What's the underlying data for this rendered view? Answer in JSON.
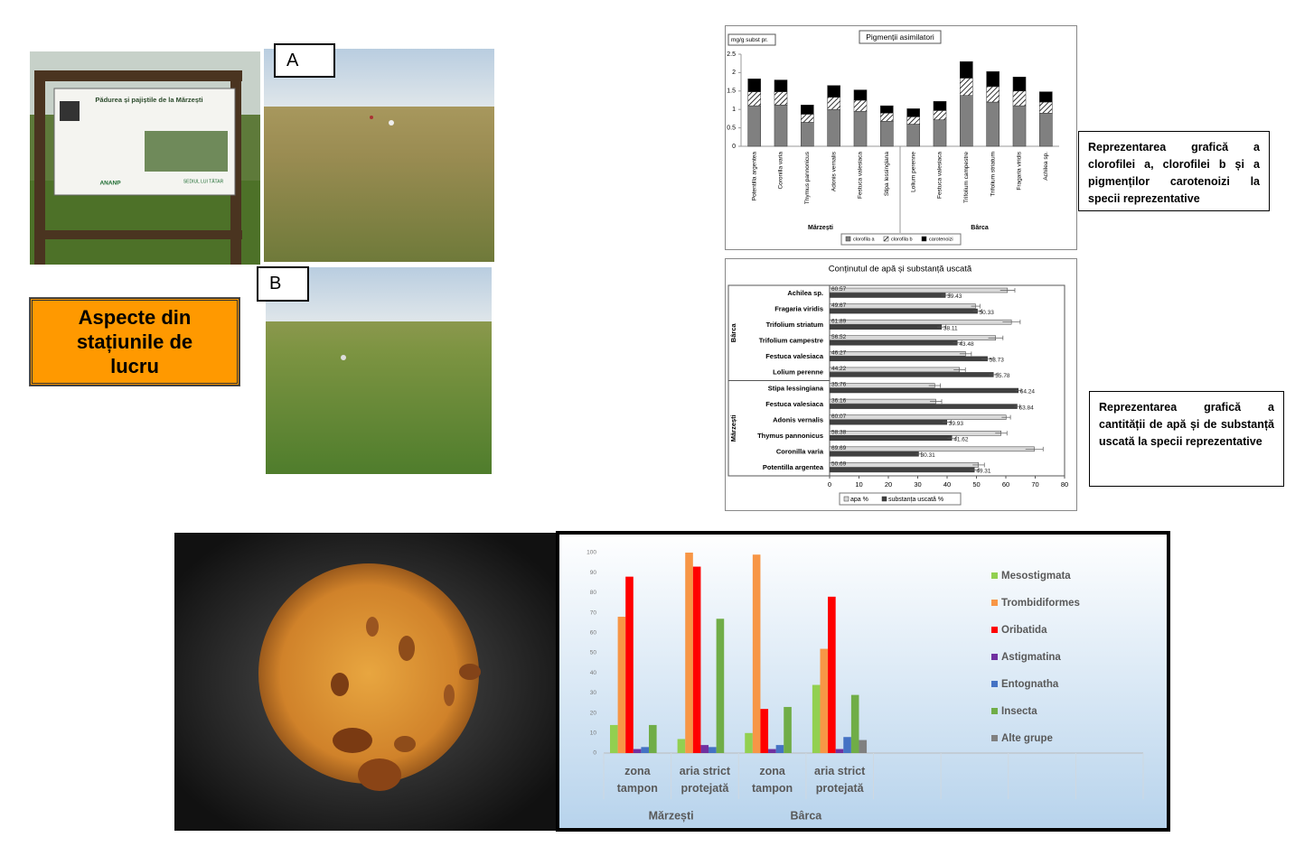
{
  "photos": {
    "sign_title": "Pădurea și pajiștile de la Mărzești",
    "sign_logos": [
      "ANANP",
      "SEDIUL LUI TĂTAR"
    ],
    "label_a": "A",
    "label_b": "B"
  },
  "title_box": "Aspecte din stațiunile de lucru",
  "captions": [
    "Reprezentarea grafică a clorofilei a, clorofilei b și a pigmenților carotenoizi la specii reprezentative",
    "Reprezentarea grafică a cantității de apă și de substanță uscată la specii reprezentative"
  ],
  "chart_data": [
    {
      "type": "bar",
      "stacked": true,
      "title": "Pigmenții asimilatori",
      "y_label": "mg/g subst pr.",
      "groups": [
        {
          "name": "Mărzești",
          "categories": [
            "Potentilla argentea",
            "Coronilla varia",
            "Thymus pannonicus",
            "Adonis vernalis",
            "Festuca valesiaca",
            "Stipa lessingiana"
          ]
        },
        {
          "name": "Bârca",
          "categories": [
            "Lolium perenne",
            "Festuca valesiaca",
            "Trifolium campestre",
            "Trifolium striatum",
            "Fragaria viridis",
            "Achilea sp."
          ]
        }
      ],
      "series": [
        {
          "name": "clorofila a",
          "color": "#808080",
          "values": [
            1.1,
            1.12,
            0.65,
            1.0,
            0.95,
            0.68,
            0.6,
            0.72,
            1.38,
            1.2,
            1.1,
            0.9
          ]
        },
        {
          "name": "clorofila b",
          "color": "#ffffff",
          "pattern": "hatch",
          "values": [
            0.38,
            0.36,
            0.22,
            0.33,
            0.3,
            0.22,
            0.2,
            0.25,
            0.47,
            0.42,
            0.4,
            0.3
          ]
        },
        {
          "name": "carotenoizi",
          "color": "#000000",
          "values": [
            0.35,
            0.32,
            0.25,
            0.32,
            0.28,
            0.2,
            0.22,
            0.25,
            0.45,
            0.41,
            0.38,
            0.28
          ]
        }
      ],
      "ylim": [
        0,
        2.5
      ],
      "yticks": [
        0,
        0.5,
        1,
        1.5,
        2,
        2.5
      ],
      "legend": "bottom"
    },
    {
      "type": "bar",
      "horizontal": true,
      "title": "Conținutul de apă și substanță uscată",
      "groups": [
        {
          "name": "Bârca",
          "categories": [
            "Achilea sp.",
            "Fragaria viridis",
            "Trifolium striatum",
            "Trifolium campestre",
            "Festuca valesiaca",
            "Lolium perenne"
          ]
        },
        {
          "name": "Mărzești",
          "categories": [
            "Stipa lessingiana",
            "Festuca valesiaca",
            "Adonis vernalis",
            "Thymus pannonicus",
            "Coronilla varia",
            "Potentilla argentea"
          ]
        }
      ],
      "series": [
        {
          "name": "apa %",
          "color": "#d9d9d9",
          "values": [
            60.57,
            49.67,
            61.89,
            56.52,
            46.27,
            44.22,
            35.76,
            36.16,
            60.07,
            58.38,
            69.69,
            50.69
          ],
          "errors": [
            2.5,
            1.5,
            3,
            2.5,
            2,
            2,
            2,
            2,
            1.5,
            2,
            3,
            2
          ]
        },
        {
          "name": "substanța uscată %",
          "color": "#404040",
          "values": [
            39.43,
            50.33,
            38.11,
            43.48,
            53.73,
            55.78,
            64.24,
            63.84,
            39.93,
            41.62,
            30.31,
            49.31
          ],
          "errors": [
            1.5,
            1.5,
            1.5,
            1.5,
            2,
            1.5,
            1,
            1,
            1.5,
            1.5,
            1,
            1.5
          ]
        }
      ],
      "data_labels": true,
      "xlim": [
        0,
        80
      ],
      "xticks": [
        0,
        10,
        20,
        30,
        40,
        50,
        60,
        70,
        80
      ],
      "legend": "bottom"
    },
    {
      "type": "bar",
      "groups": [
        {
          "name": "Mărzești",
          "categories": [
            "zona tampon",
            "aria strict protejată"
          ]
        },
        {
          "name": "Bârca",
          "categories": [
            "zona tampon",
            "aria strict protejată"
          ]
        },
        {
          "name": null,
          "categories": [
            null,
            null,
            null,
            null
          ]
        }
      ],
      "series": [
        {
          "name": "Mesostigmata",
          "color": "#92d050",
          "values": [
            14,
            7,
            10,
            34,
            null,
            null,
            null,
            null
          ]
        },
        {
          "name": "Trombidiformes",
          "color": "#f79646",
          "values": [
            68,
            100,
            99,
            52,
            null,
            null,
            null,
            null
          ]
        },
        {
          "name": "Oribatida",
          "color": "#ff0000",
          "values": [
            88,
            93,
            22,
            78,
            null,
            null,
            null,
            null
          ]
        },
        {
          "name": "Astigmatina",
          "color": "#7030a0",
          "values": [
            2,
            4,
            2,
            2,
            null,
            null,
            null,
            null
          ]
        },
        {
          "name": "Entognatha",
          "color": "#4472c4",
          "values": [
            3,
            3,
            4,
            8,
            null,
            null,
            null,
            null
          ]
        },
        {
          "name": "Insecta",
          "color": "#70ad47",
          "values": [
            14,
            67,
            23,
            29,
            null,
            null,
            null,
            null
          ]
        },
        {
          "name": "Alte grupe",
          "color": "#808080",
          "values": [
            0,
            0,
            0,
            6.5,
            null,
            null,
            null,
            null
          ]
        }
      ],
      "ylim": [
        0,
        100
      ],
      "yticks": [
        0,
        10,
        20,
        30,
        40,
        50,
        60,
        70,
        80,
        90,
        100
      ],
      "grid": false,
      "legend": "right"
    }
  ]
}
